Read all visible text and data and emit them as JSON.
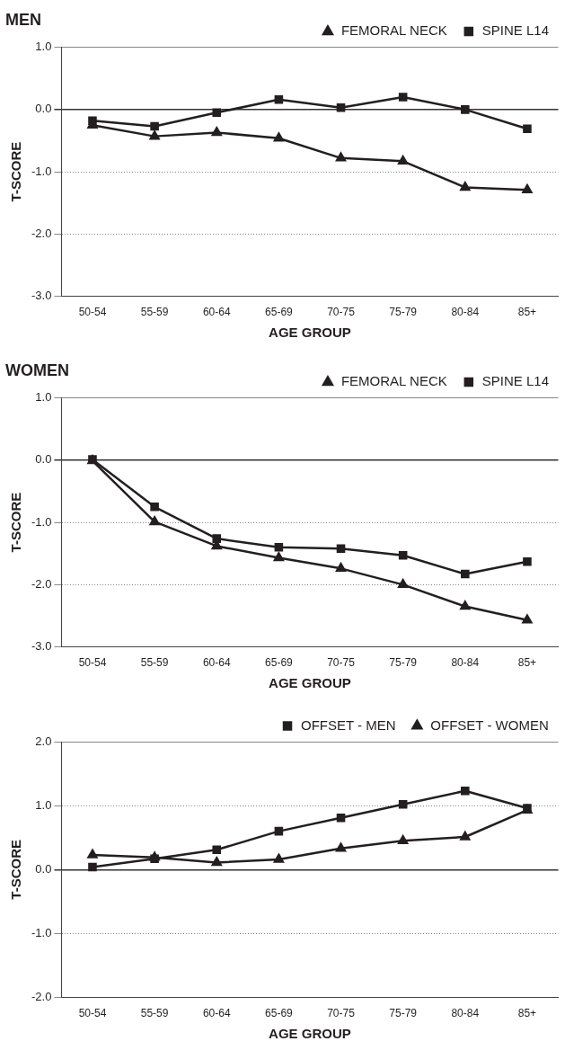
{
  "chart_data": [
    {
      "type": "line",
      "title": "MEN",
      "xlabel": "AGE GROUP",
      "ylabel": "T-SCORE",
      "categories": [
        "50-54",
        "55-59",
        "60-64",
        "65-69",
        "70-75",
        "75-79",
        "80-84",
        "85+"
      ],
      "series": [
        {
          "name": "FEMORAL NECK",
          "color": "#231f20",
          "marker": "triangle",
          "values": [
            -0.25,
            -0.43,
            -0.37,
            -0.46,
            -0.78,
            -0.83,
            -1.25,
            -1.29
          ]
        },
        {
          "name": "SPINE L14",
          "color": "#231f20",
          "marker": "square",
          "values": [
            -0.18,
            -0.27,
            -0.05,
            0.16,
            0.03,
            0.2,
            0.0,
            -0.31
          ]
        }
      ],
      "ylim": [
        -3,
        1
      ],
      "yticks": [
        {
          "value": -3,
          "label": "-3.0"
        },
        {
          "value": -2,
          "label": "-2.0"
        },
        {
          "value": -1,
          "label": "-1.0"
        },
        {
          "value": 0,
          "label": "0.0"
        },
        {
          "value": 1,
          "label": "1.0"
        }
      ],
      "grid": "y",
      "legend": "top right",
      "line_style": "solid"
    },
    {
      "type": "line",
      "title": "WOMEN",
      "xlabel": "AGE GROUP",
      "ylabel": "T-SCORE",
      "categories": [
        "50-54",
        "55-59",
        "60-64",
        "65-69",
        "70-75",
        "75-79",
        "80-84",
        "85+"
      ],
      "series": [
        {
          "name": "FEMORAL NECK",
          "color": "#231f20",
          "marker": "triangle",
          "values": [
            -0.01,
            -0.99,
            -1.38,
            -1.57,
            -1.74,
            -2.0,
            -2.35,
            -2.57
          ]
        },
        {
          "name": "SPINE L14",
          "color": "#231f20",
          "marker": "square",
          "values": [
            0.01,
            -0.75,
            -1.26,
            -1.4,
            -1.42,
            -1.53,
            -1.83,
            -1.63
          ]
        }
      ],
      "ylim": [
        -3,
        1
      ],
      "yticks": [
        {
          "value": -3,
          "label": "-3.0"
        },
        {
          "value": -2,
          "label": "-2.0"
        },
        {
          "value": -1,
          "label": "-1.0"
        },
        {
          "value": 0,
          "label": "0.0"
        },
        {
          "value": 1,
          "label": "1.0"
        }
      ],
      "grid": "y",
      "legend": "top right",
      "line_style": "solid"
    },
    {
      "type": "line",
      "xlabel": "AGE GROUP",
      "ylabel": "T-SCORE",
      "categories": [
        "50-54",
        "55-59",
        "60-64",
        "65-69",
        "70-75",
        "75-79",
        "80-84",
        "85+"
      ],
      "series": [
        {
          "name": "OFFSET - MEN",
          "color": "#231f20",
          "marker": "square",
          "values": [
            0.04,
            0.17,
            0.31,
            0.6,
            0.81,
            1.02,
            1.23,
            0.96
          ]
        },
        {
          "name": "OFFSET - WOMEN",
          "color": "#231f20",
          "marker": "triangle",
          "values": [
            0.23,
            0.19,
            0.11,
            0.16,
            0.33,
            0.45,
            0.51,
            0.93
          ]
        }
      ],
      "ylim": [
        -2,
        2
      ],
      "yticks": [
        {
          "value": -2,
          "label": "-2.0"
        },
        {
          "value": -1,
          "label": "-1.0"
        },
        {
          "value": 0,
          "label": "0.0"
        },
        {
          "value": 1,
          "label": "1.0"
        },
        {
          "value": 2,
          "label": "2.0"
        }
      ],
      "grid": "y",
      "legend": "top right",
      "line_style": "solid"
    }
  ]
}
